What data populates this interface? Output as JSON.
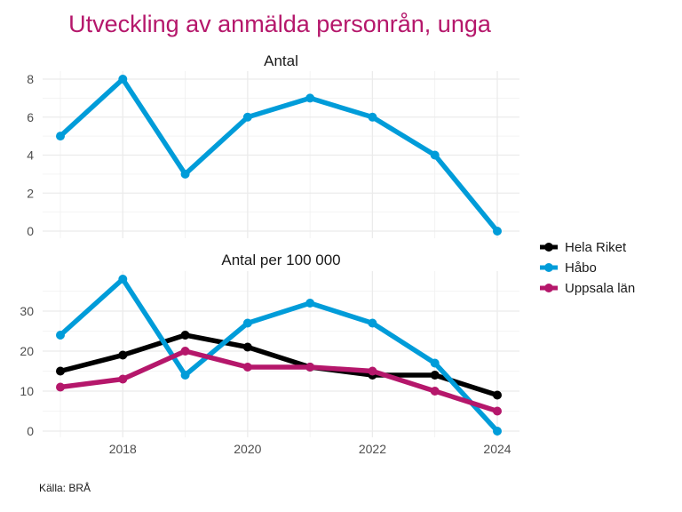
{
  "chart_data": {
    "type": "line",
    "title": "Utveckling av anmälda personrån, unga",
    "caption": "Källa: BRÅ",
    "x": [
      2017,
      2018,
      2019,
      2020,
      2021,
      2022,
      2023,
      2024
    ],
    "x_ticks": [
      "2018",
      "2020",
      "2022",
      "2024"
    ],
    "x_tick_values": [
      2018,
      2020,
      2022,
      2024
    ],
    "xlim": [
      2016.6,
      2024.4
    ],
    "grid": true,
    "legend_position": "right",
    "series_colors": {
      "Hela Riket": "#000000",
      "Håbo": "#009cd9",
      "Uppsala län": "#b5176b"
    },
    "legend": [
      "Hela Riket",
      "Håbo",
      "Uppsala län"
    ],
    "panels": [
      {
        "title": "Antal",
        "ylim": [
          0,
          8.4
        ],
        "y_ticks": [
          "0",
          "2",
          "4",
          "6",
          "8"
        ],
        "y_tick_values": [
          0,
          2,
          4,
          6,
          8
        ],
        "series": [
          {
            "name": "Håbo",
            "values": [
              5,
              8,
              3,
              6,
              7,
              6,
              4,
              0
            ]
          }
        ]
      },
      {
        "title": "Antal per 100 000",
        "ylim": [
          0,
          39.5
        ],
        "y_ticks": [
          "0",
          "10",
          "20",
          "30"
        ],
        "y_tick_values": [
          0,
          10,
          20,
          30
        ],
        "series": [
          {
            "name": "Hela Riket",
            "values": [
              15,
              19,
              24,
              21,
              16,
              14,
              14,
              9
            ]
          },
          {
            "name": "Håbo",
            "values": [
              24,
              38,
              14,
              27,
              32,
              27,
              17,
              0
            ]
          },
          {
            "name": "Uppsala län",
            "values": [
              11,
              13,
              20,
              16,
              16,
              15,
              10,
              5
            ]
          }
        ]
      }
    ]
  }
}
